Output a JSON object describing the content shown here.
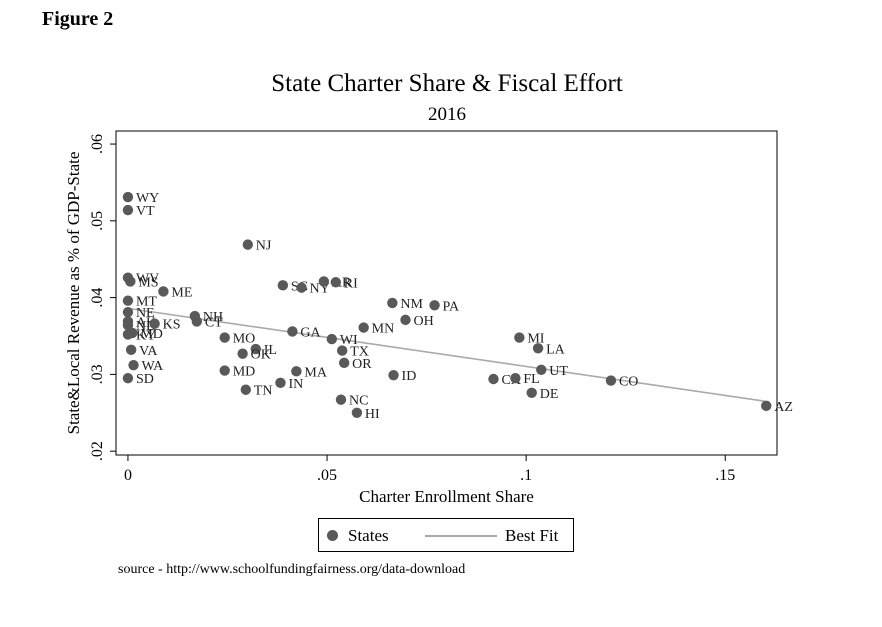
{
  "figure_label": "Figure 2",
  "source": "source - http://www.schoolfundingfairness.org/data-download",
  "colors": {
    "point": "#595959",
    "fit_line": "#aaaaaa",
    "frame": "#000000"
  },
  "chart_data": {
    "type": "scatter",
    "title": "State Charter Share & Fiscal Effort",
    "subtitle": "2016",
    "xlabel": "Charter Enrollment Share",
    "ylabel": "State&Local Revenue as % of GDP-State",
    "xlim": [
      -0.003,
      0.163
    ],
    "ylim": [
      0.0195,
      0.0617
    ],
    "xticks": [
      0,
      0.05,
      0.1,
      0.15
    ],
    "xtick_labels": [
      "0",
      ".05",
      ".1",
      ".15"
    ],
    "yticks": [
      0.02,
      0.03,
      0.04,
      0.05,
      0.06
    ],
    "ytick_labels": [
      ".02",
      ".03",
      ".04",
      ".05",
      ".06"
    ],
    "grid": false,
    "legend": {
      "position": "bottom",
      "entries": [
        "States",
        "Best Fit"
      ]
    },
    "fit_line": {
      "x": [
        0,
        0.16
      ],
      "y": [
        0.0386,
        0.0265
      ]
    },
    "points": [
      {
        "label": "WY",
        "x": 0.0,
        "y": 0.0531
      },
      {
        "label": "VT",
        "x": 0.0,
        "y": 0.0514
      },
      {
        "label": "WV",
        "x": 0.0,
        "y": 0.0426
      },
      {
        "label": "MS",
        "x": 0.0006,
        "y": 0.0421
      },
      {
        "label": "MT",
        "x": 0.0,
        "y": 0.0396
      },
      {
        "label": "ME",
        "x": 0.0089,
        "y": 0.0408
      },
      {
        "label": "NE",
        "x": 0.0,
        "y": 0.0381
      },
      {
        "label": "AK",
        "x": 0.0,
        "y": 0.0369
      },
      {
        "label": "ND",
        "x": 0.0,
        "y": 0.0364
      },
      {
        "label": "KS",
        "x": 0.0067,
        "y": 0.0366
      },
      {
        "label": "KY",
        "x": 0.0,
        "y": 0.0352
      },
      {
        "label": "MD",
        "x": 0.0011,
        "y": 0.0354
      },
      {
        "label": "VA",
        "x": 0.0008,
        "y": 0.0332
      },
      {
        "label": "WA",
        "x": 0.0014,
        "y": 0.0312
      },
      {
        "label": "SD",
        "x": 0.0,
        "y": 0.0295
      },
      {
        "label": "NJ",
        "x": 0.0301,
        "y": 0.0469
      },
      {
        "label": "NH",
        "x": 0.0168,
        "y": 0.0376
      },
      {
        "label": "CT",
        "x": 0.0173,
        "y": 0.0369
      },
      {
        "label": "MO",
        "x": 0.0243,
        "y": 0.0348
      },
      {
        "label": "IL",
        "x": 0.0321,
        "y": 0.0333
      },
      {
        "label": "OK",
        "x": 0.0288,
        "y": 0.0327
      },
      {
        "label": "MD",
        "x": 0.0243,
        "y": 0.0305
      },
      {
        "label": "TN",
        "x": 0.0296,
        "y": 0.028
      },
      {
        "label": "IN",
        "x": 0.0383,
        "y": 0.0289
      },
      {
        "label": "MA",
        "x": 0.0423,
        "y": 0.0304
      },
      {
        "label": "GA",
        "x": 0.0413,
        "y": 0.0356
      },
      {
        "label": "SC",
        "x": 0.0389,
        "y": 0.0416
      },
      {
        "label": "NY",
        "x": 0.0436,
        "y": 0.0413
      },
      {
        "label": "AR",
        "x": 0.0492,
        "y": 0.0421
      },
      {
        "label": "RI",
        "x": 0.0522,
        "y": 0.042
      },
      {
        "label": "WI",
        "x": 0.0512,
        "y": 0.0346
      },
      {
        "label": "TX",
        "x": 0.0538,
        "y": 0.0331
      },
      {
        "label": "OR",
        "x": 0.0543,
        "y": 0.0315
      },
      {
        "label": "NC",
        "x": 0.0535,
        "y": 0.0267
      },
      {
        "label": "HI",
        "x": 0.0575,
        "y": 0.025
      },
      {
        "label": "MN",
        "x": 0.0592,
        "y": 0.0361
      },
      {
        "label": "NM",
        "x": 0.0664,
        "y": 0.0393
      },
      {
        "label": "OH",
        "x": 0.0697,
        "y": 0.0371
      },
      {
        "label": "PA",
        "x": 0.077,
        "y": 0.039
      },
      {
        "label": "ID",
        "x": 0.0667,
        "y": 0.0299
      },
      {
        "label": "CA",
        "x": 0.0918,
        "y": 0.0294
      },
      {
        "label": "FL",
        "x": 0.0973,
        "y": 0.0295
      },
      {
        "label": "MI",
        "x": 0.0983,
        "y": 0.0348
      },
      {
        "label": "LA",
        "x": 0.103,
        "y": 0.0334
      },
      {
        "label": "UT",
        "x": 0.1038,
        "y": 0.0306
      },
      {
        "label": "DE",
        "x": 0.1014,
        "y": 0.0276
      },
      {
        "label": "CO",
        "x": 0.1213,
        "y": 0.0292
      },
      {
        "label": "AZ",
        "x": 0.1603,
        "y": 0.0259
      }
    ]
  }
}
